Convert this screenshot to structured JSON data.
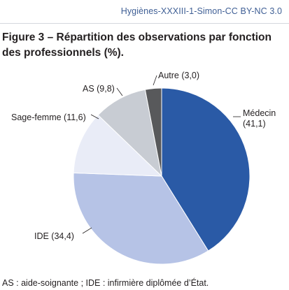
{
  "header": {
    "source": "Hygiènes-XXXIII-1-Simon-CC BY-NC 3.0"
  },
  "figure": {
    "title": "Figure 3 – Répartition des observations par fonction des professionnels (%).",
    "footnote": "AS : aide-soignante ; IDE : infirmière diplômée d’État."
  },
  "chart_data": {
    "type": "pie",
    "unit": "%",
    "slices": [
      {
        "label": "Médecin",
        "value": 41.1,
        "label_lines": [
          "Médecin",
          "(41,1)"
        ],
        "color": "#2a5aa6"
      },
      {
        "label": "IDE",
        "value": 34.4,
        "label_lines": [
          "IDE (34,4)"
        ],
        "color": "#b6c3e6"
      },
      {
        "label": "Sage-femme",
        "value": 11.6,
        "label_lines": [
          "Sage-femme (11,6)"
        ],
        "color": "#e9ecf7"
      },
      {
        "label": "AS",
        "value": 9.8,
        "label_lines": [
          "AS (9,8)"
        ],
        "color": "#c8ccd3"
      },
      {
        "label": "Autre",
        "value": 3.0,
        "label_lines": [
          "Autre (3,0)"
        ],
        "color": "#58595b"
      }
    ]
  }
}
